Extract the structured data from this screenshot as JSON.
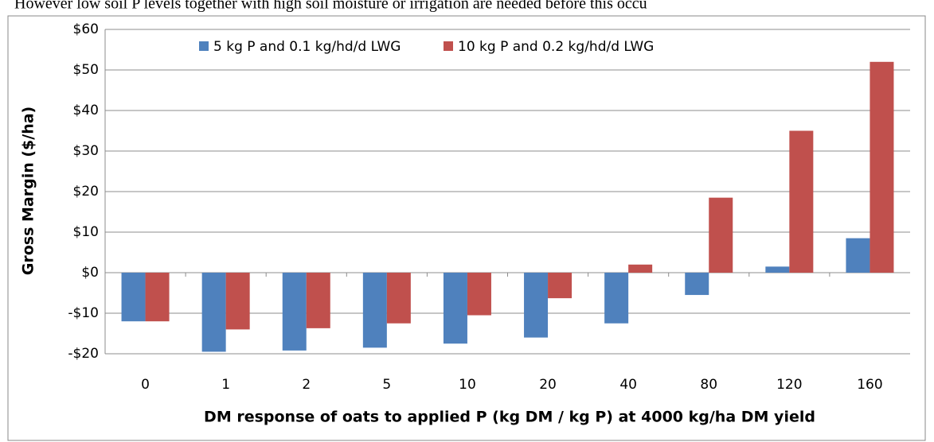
{
  "chart_data": {
    "type": "bar",
    "lead_text": "However low soil P levels together with high soil moisture or irrigation are needed before this occu",
    "x_label": "DM response of oats to applied P (kg DM / kg P) at 4000 kg/ha DM yield",
    "y_label": "Gross Margin ($/ha)",
    "categories": [
      "0",
      "1",
      "2",
      "5",
      "10",
      "20",
      "40",
      "80",
      "120",
      "160"
    ],
    "series": [
      {
        "name": "5 kg P and 0.1 kg/hd/d LWG",
        "color": "#4f81bd",
        "values": [
          -12,
          -19.5,
          -19.2,
          -18.5,
          -17.5,
          -16,
          -12.5,
          -5.5,
          1.5,
          8.5
        ]
      },
      {
        "name": "10 kg P and 0.2 kg/hd/d LWG",
        "color": "#c0504d",
        "values": [
          -12,
          -14,
          -13.7,
          -12.5,
          -10.5,
          -6.3,
          2,
          18.5,
          35,
          52
        ]
      }
    ],
    "ylim": [
      -20,
      60
    ],
    "yticks": [
      {
        "value": -20,
        "label": "-$20"
      },
      {
        "value": -10,
        "label": "-$10"
      },
      {
        "value": 0,
        "label": "$0"
      },
      {
        "value": 10,
        "label": "$10"
      },
      {
        "value": 20,
        "label": "$20"
      },
      {
        "value": 30,
        "label": "$30"
      },
      {
        "value": 40,
        "label": "$40"
      },
      {
        "value": 50,
        "label": "$50"
      },
      {
        "value": 60,
        "label": "$60"
      }
    ],
    "grid": true,
    "legend": "top"
  }
}
